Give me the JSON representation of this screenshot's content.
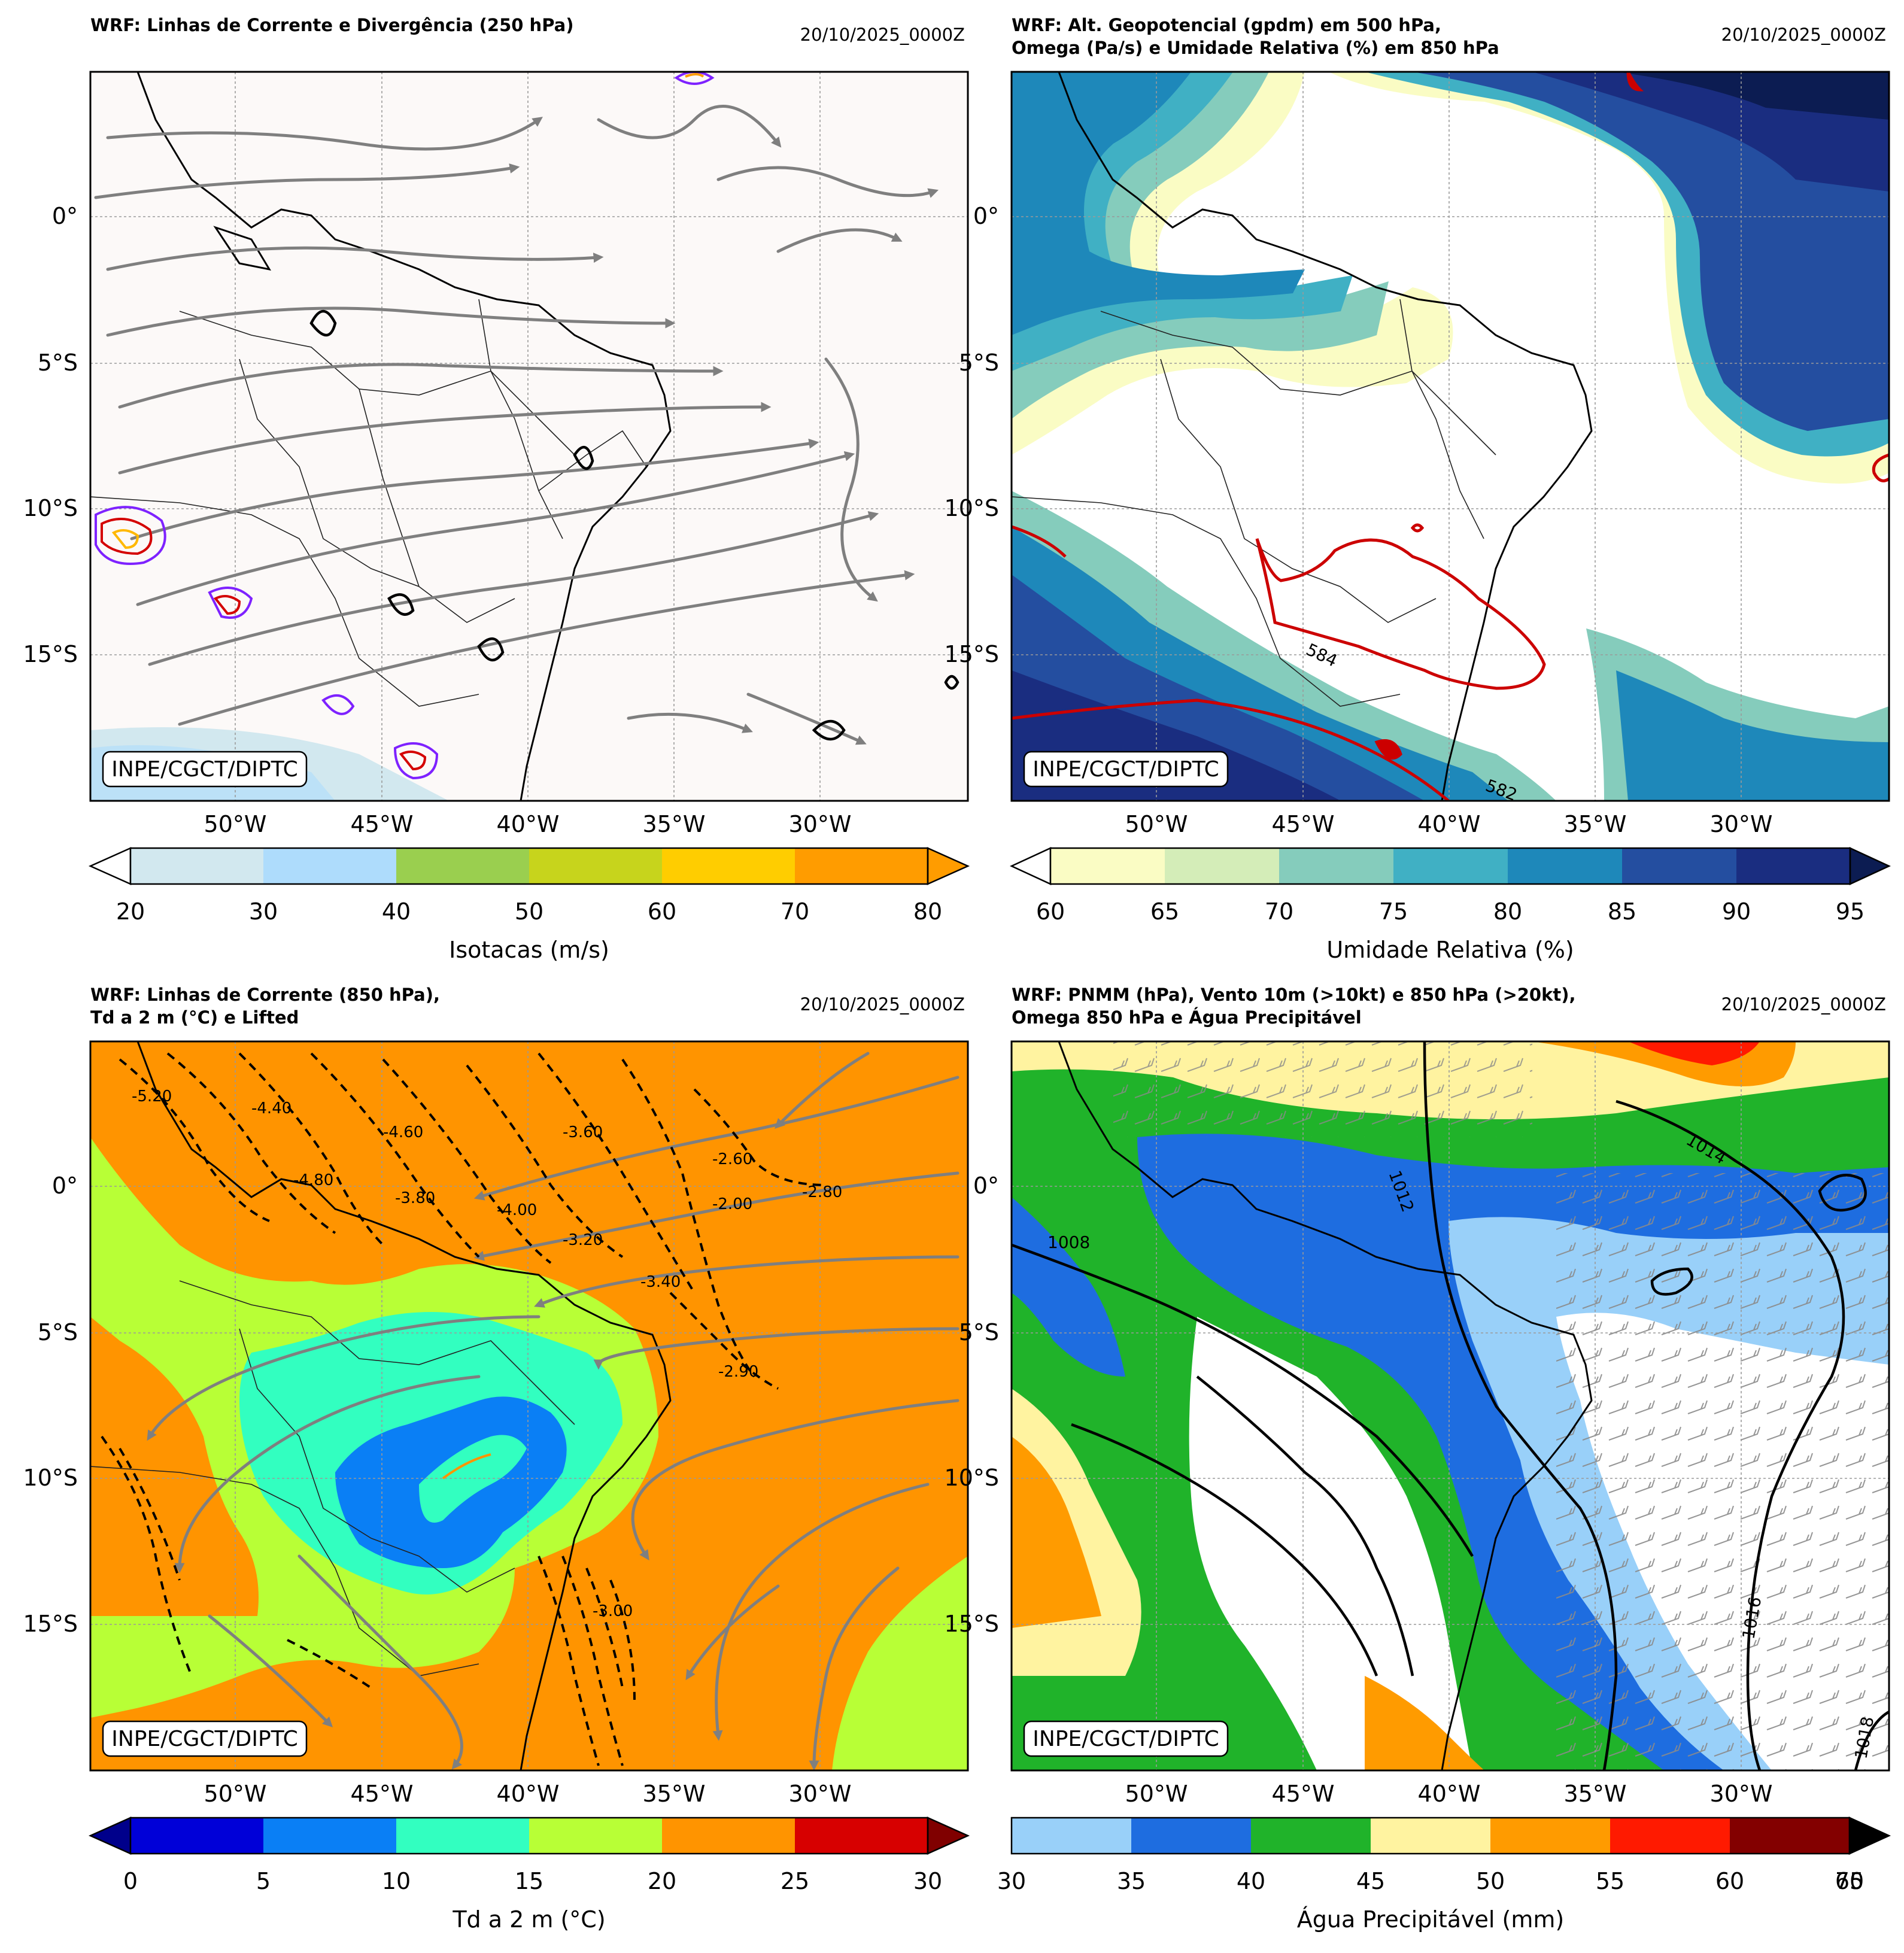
{
  "panels": [
    {
      "id": "p1",
      "title_lines": [
        "WRF: Linhas de Corrente e Divergência (250 hPa)"
      ],
      "timestamp": "20/10/2025_0000Z",
      "credit": "INPE/CGCT/DIPTC",
      "lon_labels": [
        "50°W",
        "45°W",
        "40°W",
        "35°W",
        "30°W"
      ],
      "lat_labels": [
        "0°",
        "5°S",
        "10°S",
        "15°S"
      ],
      "colorbar": {
        "label": "Isotacas (m/s)",
        "ticks": [
          "20",
          "30",
          "40",
          "50",
          "60",
          "70",
          "80"
        ],
        "colors": [
          "#d2e8ef",
          "#aedcfc",
          "#9acf4f",
          "#c7d41c",
          "#ffcd00",
          "#ff9c00"
        ],
        "under_color": "#ffffff",
        "over_color": "#ff9c00"
      }
    },
    {
      "id": "p2",
      "title_lines": [
        "WRF: Alt. Geopotencial (gpdm) em 500 hPa,",
        "Omega (Pa/s) e Umidade Relativa (%) em 850 hPa"
      ],
      "timestamp": "20/10/2025_0000Z",
      "credit": "INPE/CGCT/DIPTC",
      "contour_labels": [
        "584",
        "582"
      ],
      "lon_labels": [
        "50°W",
        "45°W",
        "40°W",
        "35°W",
        "30°W"
      ],
      "lat_labels": [
        "0°",
        "5°S",
        "10°S",
        "15°S"
      ],
      "colorbar": {
        "label": "Umidade Relativa (%)",
        "ticks": [
          "60",
          "65",
          "70",
          "75",
          "80",
          "85",
          "90",
          "95"
        ],
        "colors": [
          "#fafcc4",
          "#d4edb8",
          "#85ccbc",
          "#40b0c4",
          "#1e88ba",
          "#244ea0",
          "#1a2d80"
        ],
        "under_color": "#ffffff",
        "over_color": "#0c1c52"
      }
    },
    {
      "id": "p3",
      "title_lines": [
        "WRF: Linhas de Corrente (850 hPa),",
        "Td a 2 m (°C) e Lifted"
      ],
      "timestamp": "20/10/2025_0000Z",
      "credit": "INPE/CGCT/DIPTC",
      "contour_labels": [
        "-5.20",
        "-4.40",
        "-4.80",
        "-4.60",
        "-3.60",
        "-4.00",
        "-2.60",
        "-2.80",
        "-2.00",
        "-3.20",
        "-3.40",
        "-2.90",
        "-3.80",
        "-3.00"
      ],
      "lon_labels": [
        "50°W",
        "45°W",
        "40°W",
        "35°W",
        "30°W"
      ],
      "lat_labels": [
        "0°",
        "5°S",
        "10°S",
        "15°S"
      ],
      "colorbar": {
        "label": "Td a 2 m (°C)",
        "ticks": [
          "0",
          "5",
          "10",
          "15",
          "20",
          "25",
          "30"
        ],
        "colors": [
          "#0000d8",
          "#0a7ff5",
          "#32ffc0",
          "#b8ff36",
          "#ff9400",
          "#d70000"
        ],
        "under_color": "#00008b",
        "over_color": "#800000"
      }
    },
    {
      "id": "p4",
      "title_lines": [
        "WRF: PNMM (hPa), Vento 10m (>10kt) e 850 hPa (>20kt),",
        "Omega 850 hPa e Água Precipitável"
      ],
      "timestamp": "20/10/2025_0000Z",
      "credit": "INPE/CGCT/DIPTC",
      "contour_labels": [
        "1012",
        "1014",
        "1008",
        "1016",
        "1018"
      ],
      "lon_labels": [
        "50°W",
        "45°W",
        "40°W",
        "35°W",
        "30°W"
      ],
      "lat_labels": [
        "0°",
        "5°S",
        "10°S",
        "15°S"
      ],
      "colorbar": {
        "label": "Água Precipitável (mm)",
        "ticks": [
          "30",
          "35",
          "40",
          "45",
          "50",
          "55",
          "60",
          "65",
          "70"
        ],
        "colors": [
          "#99d0f9",
          "#1e6de0",
          "#20b32a",
          "#fff3a0",
          "#ff9b00",
          "#ff1a00",
          "#830000"
        ],
        "under_color": "#99d0f9",
        "over_color": "#000000"
      }
    }
  ]
}
